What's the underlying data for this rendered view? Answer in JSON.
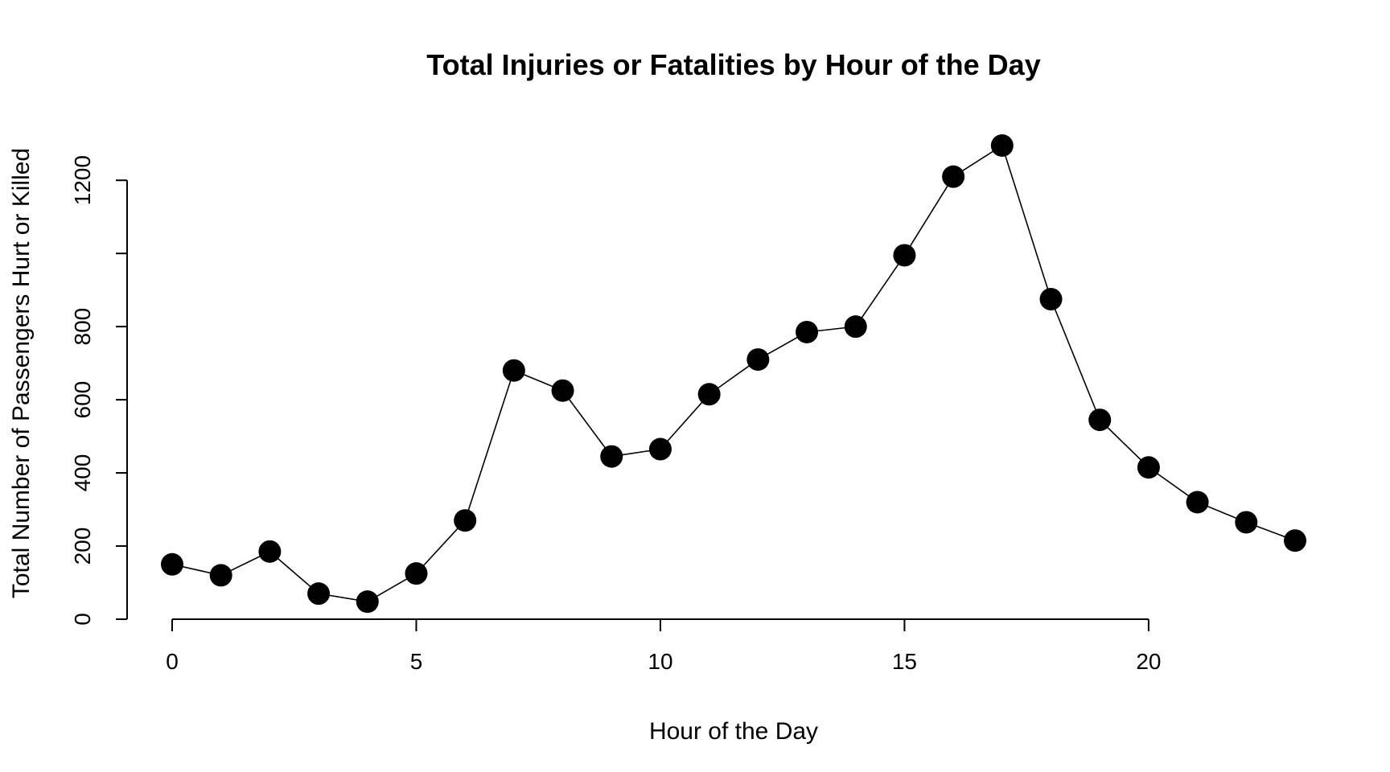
{
  "chart_data": {
    "type": "line",
    "title": "Total Injuries or Fatalities by Hour of the Day",
    "xlabel": "Hour of the Day",
    "ylabel": "Total Number of Passengers Hurt or Killed",
    "x": [
      0,
      1,
      2,
      3,
      4,
      5,
      6,
      7,
      8,
      9,
      10,
      11,
      12,
      13,
      14,
      15,
      16,
      17,
      18,
      19,
      20,
      21,
      22,
      23
    ],
    "values": [
      150,
      120,
      185,
      70,
      48,
      125,
      270,
      680,
      625,
      445,
      465,
      615,
      710,
      785,
      800,
      995,
      1210,
      1295,
      875,
      545,
      415,
      320,
      265,
      215
    ],
    "xlim": [
      0,
      23
    ],
    "ylim": [
      0,
      1295
    ],
    "xticks": [
      0,
      5,
      10,
      15,
      20
    ],
    "yticks": [
      0,
      200,
      400,
      600,
      800,
      1000,
      1200
    ],
    "xtick_labels": [
      "0",
      "5",
      "10",
      "15",
      "20"
    ],
    "ytick_labels": [
      "0",
      "200",
      "400",
      "600",
      "800",
      "",
      "1200"
    ],
    "markers": "filled-circle",
    "grid": false,
    "legend": "none"
  }
}
